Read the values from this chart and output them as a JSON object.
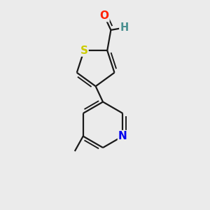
{
  "bg_color": "#ebebeb",
  "bond_color": "#1a1a1a",
  "bond_width": 1.6,
  "atom_colors": {
    "S": "#cccc00",
    "O": "#ff2200",
    "N": "#0000ee",
    "H": "#4a9090",
    "C": "#1a1a1a"
  },
  "figsize": [
    3.0,
    3.0
  ],
  "dpi": 100,
  "xlim": [
    0,
    10
  ],
  "ylim": [
    0,
    10
  ]
}
